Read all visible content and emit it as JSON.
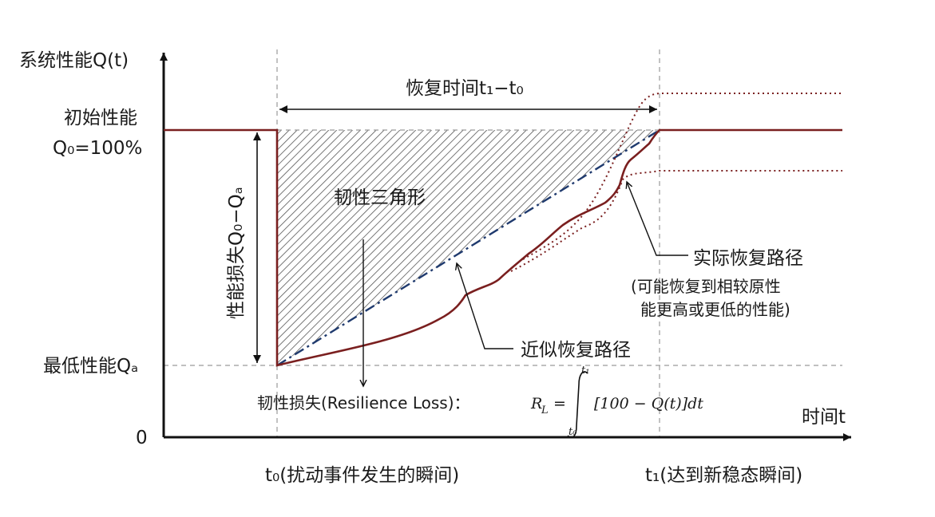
{
  "y_axis_label": "系统性能Q(t)",
  "x_axis_label": "时间t",
  "origin_label": "0",
  "initial_perf_label": "初始性能",
  "initial_perf_value": "Q₀=100%",
  "min_perf_label": "最低性能Qₐ",
  "perf_loss_label": "性能损失Q₀−Qₐ",
  "recovery_time_label": "恢复时间t₁−t₀",
  "triangle_label": "韧性三角形",
  "actual_path_label": "实际恢复路径",
  "actual_path_note_1": "(可能恢复到相较原性",
  "actual_path_note_2": "能更高或更低的性能)",
  "approx_path_label": "近似恢复路径",
  "resilience_loss_label": "韧性损失(Resilience Loss)：",
  "formula": {
    "lhs": "R",
    "lhs_sub": "L",
    "eq": "=",
    "upper": "t₁",
    "lower": "t₀",
    "integrand": "[100 − Q(t)]dt"
  },
  "t0_label": "t₀(扰动事件发生的瞬间)",
  "t1_label": "t₁(达到新稳态瞬间)",
  "colors": {
    "curve": "#7a1f1f",
    "dashed_line": "#1f3a6e",
    "guide": "#9a9a9a",
    "hatch": "#555555"
  }
}
